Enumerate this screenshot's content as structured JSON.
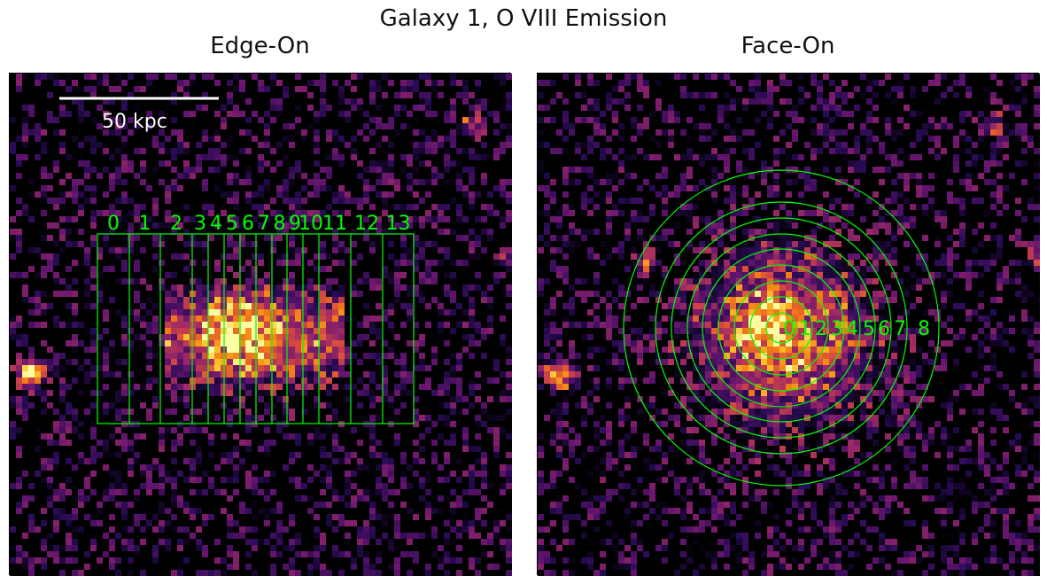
{
  "figure": {
    "title": "Galaxy 1, O VIII Emission"
  },
  "panels": {
    "edge": {
      "title": "Edge-On",
      "scale_bar_label": "50 kpc",
      "bin_labels": [
        "0",
        "1",
        "2",
        "3",
        "4",
        "5",
        "6",
        "7",
        "8",
        "9",
        "10",
        "11",
        "12",
        "13"
      ]
    },
    "face": {
      "title": "Face-On",
      "ring_labels": [
        "0",
        "1",
        "2",
        "3",
        "4",
        "5",
        "6",
        "7",
        "8"
      ]
    }
  },
  "colors": {
    "annotation": "#00ff00",
    "background": "#000000",
    "colormap": "magma"
  }
}
